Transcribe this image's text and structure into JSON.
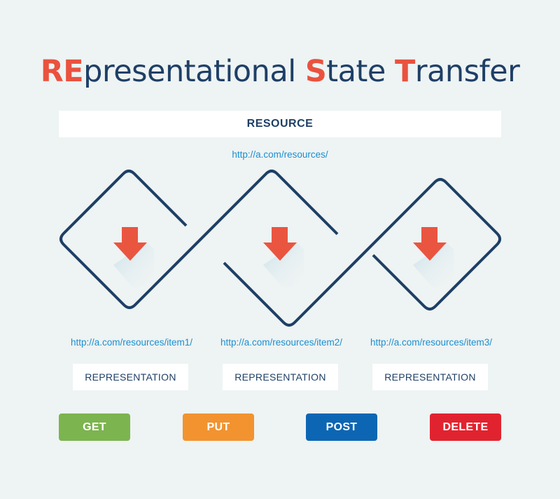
{
  "title": {
    "parts": [
      "RE",
      "presentational ",
      "S",
      "tate ",
      "T",
      "ransfer"
    ]
  },
  "resource": {
    "label": "RESOURCE",
    "url": "http://a.com/resources/"
  },
  "items": [
    {
      "url": "http://a.com/resources/item1/",
      "label": "REPRESENTATION"
    },
    {
      "url": "http://a.com/resources/item2/",
      "label": "REPRESENTATION"
    },
    {
      "url": "http://a.com/resources/item3/",
      "label": "REPRESENTATION"
    }
  ],
  "methods": [
    {
      "label": "GET",
      "color": "#7cb44f"
    },
    {
      "label": "PUT",
      "color": "#f29330"
    },
    {
      "label": "POST",
      "color": "#0d66b3"
    },
    {
      "label": "DELETE",
      "color": "#e1232f"
    }
  ],
  "colors": {
    "accent": "#e9523f",
    "navy": "#1e3f66",
    "link": "#1a8fd0",
    "background": "#eef3f3"
  }
}
